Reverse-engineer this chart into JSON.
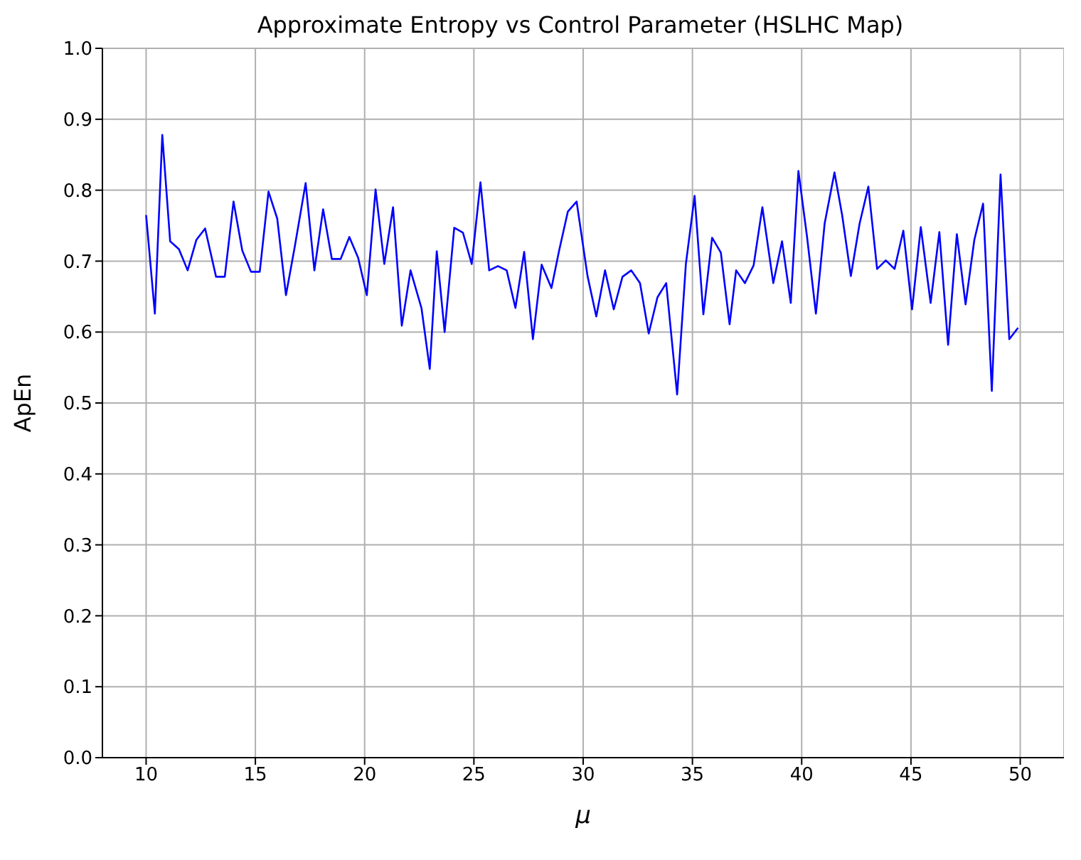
{
  "chart_data": {
    "type": "line",
    "title": "Approximate Entropy vs Control Parameter (HSLHC Map)",
    "xlabel": "μ",
    "ylabel": "ApEn",
    "x": [
      10.0,
      10.4,
      10.74,
      11.1,
      11.5,
      11.9,
      12.3,
      12.7,
      13.2,
      13.6,
      14.0,
      14.4,
      14.8,
      15.2,
      15.6,
      16.0,
      16.4,
      16.8,
      17.3,
      17.7,
      18.1,
      18.5,
      18.9,
      19.3,
      19.7,
      20.1,
      20.5,
      20.9,
      21.3,
      21.7,
      22.1,
      22.6,
      22.98,
      23.3,
      23.66,
      24.1,
      24.5,
      24.9,
      25.3,
      25.7,
      26.1,
      26.5,
      26.9,
      27.3,
      27.7,
      28.1,
      28.55,
      28.9,
      29.3,
      29.7,
      30.2,
      30.6,
      31.0,
      31.4,
      31.8,
      32.2,
      32.6,
      33.0,
      33.4,
      33.8,
      34.3,
      34.7,
      35.1,
      35.5,
      35.9,
      36.3,
      36.7,
      37.0,
      37.4,
      37.8,
      38.2,
      38.7,
      39.1,
      39.5,
      39.85,
      40.25,
      40.65,
      41.05,
      41.5,
      41.85,
      42.25,
      42.65,
      43.05,
      43.45,
      43.85,
      44.25,
      44.65,
      45.05,
      45.45,
      45.9,
      46.3,
      46.7,
      47.1,
      47.5,
      47.9,
      48.3,
      48.7,
      49.1,
      49.5,
      49.9
    ],
    "series": [
      {
        "color": "#0000ff",
        "values": [
          0.765,
          0.626,
          0.878,
          0.728,
          0.717,
          0.687,
          0.73,
          0.746,
          0.678,
          0.678,
          0.784,
          0.715,
          0.685,
          0.685,
          0.798,
          0.76,
          0.652,
          0.72,
          0.81,
          0.687,
          0.773,
          0.703,
          0.703,
          0.734,
          0.705,
          0.652,
          0.801,
          0.696,
          0.776,
          0.609,
          0.687,
          0.634,
          0.548,
          0.714,
          0.6,
          0.747,
          0.74,
          0.696,
          0.811,
          0.687,
          0.693,
          0.687,
          0.634,
          0.713,
          0.59,
          0.695,
          0.662,
          0.715,
          0.77,
          0.784,
          0.679,
          0.622,
          0.687,
          0.632,
          0.678,
          0.687,
          0.669,
          0.598,
          0.649,
          0.669,
          0.512,
          0.696,
          0.792,
          0.625,
          0.733,
          0.712,
          0.611,
          0.687,
          0.669,
          0.694,
          0.776,
          0.669,
          0.728,
          0.641,
          0.827,
          0.733,
          0.626,
          0.753,
          0.825,
          0.765,
          0.679,
          0.753,
          0.805,
          0.689,
          0.701,
          0.689,
          0.743,
          0.632,
          0.748,
          0.641,
          0.741,
          0.582,
          0.738,
          0.639,
          0.73,
          0.781,
          0.517,
          0.822,
          0.59,
          0.606
        ]
      }
    ],
    "xlim": [
      8,
      52
    ],
    "xticks": [
      10,
      15,
      20,
      25,
      30,
      35,
      40,
      45,
      50
    ],
    "ylim": [
      0,
      1
    ],
    "yticks": [
      {
        "value": 0,
        "label": "0.0"
      },
      {
        "value": 0.1,
        "label": "0.1"
      },
      {
        "value": 0.2,
        "label": "0.2"
      },
      {
        "value": 0.3,
        "label": "0.3"
      },
      {
        "value": 0.4,
        "label": "0.4"
      },
      {
        "value": 0.5,
        "label": "0.5"
      },
      {
        "value": 0.6,
        "label": "0.6"
      },
      {
        "value": 0.7,
        "label": "0.7"
      },
      {
        "value": 0.8,
        "label": "0.8"
      },
      {
        "value": 0.9,
        "label": "0.9"
      },
      {
        "value": 1,
        "label": "1.0"
      }
    ],
    "grid": true,
    "line_style": "solid",
    "marker": "none"
  }
}
